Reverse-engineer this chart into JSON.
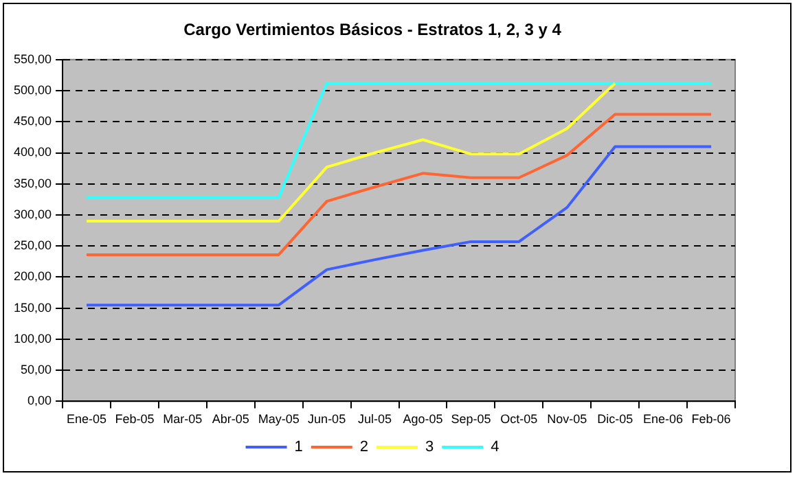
{
  "chart_data": {
    "type": "line",
    "title": "Cargo Vertimientos Básicos - Estratos 1, 2, 3 y 4",
    "categories": [
      "Ene-05",
      "Feb-05",
      "Mar-05",
      "Abr-05",
      "May-05",
      "Jun-05",
      "Jul-05",
      "Ago-05",
      "Sep-05",
      "Oct-05",
      "Nov-05",
      "Dic-05",
      "Ene-06",
      "Feb-06"
    ],
    "series": [
      {
        "name": "1",
        "color": "#3f5fff",
        "values": [
          155,
          155,
          155,
          155,
          155,
          212,
          228,
          243,
          257,
          257,
          312,
          410,
          410,
          410
        ]
      },
      {
        "name": "2",
        "color": "#ff6633",
        "values": [
          236,
          236,
          236,
          236,
          236,
          322,
          345,
          367,
          360,
          360,
          396,
          462,
          462,
          462
        ]
      },
      {
        "name": "3",
        "color": "#ffff33",
        "values": [
          290,
          290,
          290,
          290,
          290,
          377,
          400,
          421,
          398,
          398,
          439,
          512,
          null,
          null
        ]
      },
      {
        "name": "4",
        "color": "#33ffff",
        "values": [
          328,
          328,
          328,
          328,
          328,
          512,
          512,
          512,
          512,
          512,
          512,
          512,
          512,
          512
        ]
      }
    ],
    "ylim": [
      0,
      550
    ],
    "yticks": [
      {
        "value": 0,
        "label": "0,00"
      },
      {
        "value": 50,
        "label": "50,00"
      },
      {
        "value": 100,
        "label": "100,00"
      },
      {
        "value": 150,
        "label": "150,00"
      },
      {
        "value": 200,
        "label": "200,00"
      },
      {
        "value": 250,
        "label": "250,00"
      },
      {
        "value": 300,
        "label": "300,00"
      },
      {
        "value": 350,
        "label": "350,00"
      },
      {
        "value": 400,
        "label": "400,00"
      },
      {
        "value": 450,
        "label": "450,00"
      },
      {
        "value": 500,
        "label": "500,00"
      },
      {
        "value": 550,
        "label": "550,00"
      }
    ],
    "grid": "y",
    "legend": "bottom",
    "marker": "none",
    "line_style": "solid"
  }
}
